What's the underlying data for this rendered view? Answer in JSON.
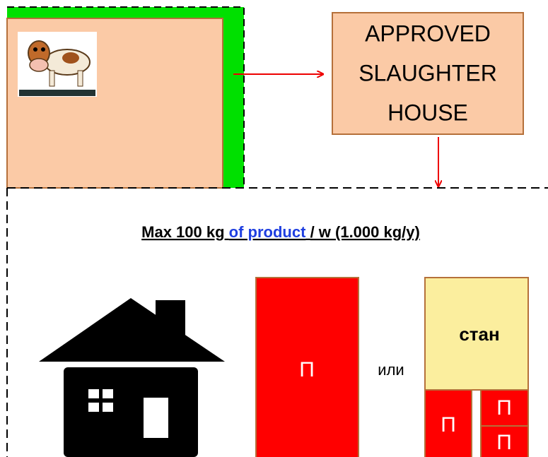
{
  "slaughter_house": {
    "lines": [
      "APPROVED",
      "SLAUGHTER",
      "HOUSE"
    ]
  },
  "title": {
    "parts": [
      "Max 100 kg",
      "of product",
      "/ w (1.000 kg/y)"
    ]
  },
  "boxes": {
    "large": "П",
    "or": "или",
    "stan": "стан",
    "small": [
      "П",
      "П",
      "П"
    ]
  }
}
